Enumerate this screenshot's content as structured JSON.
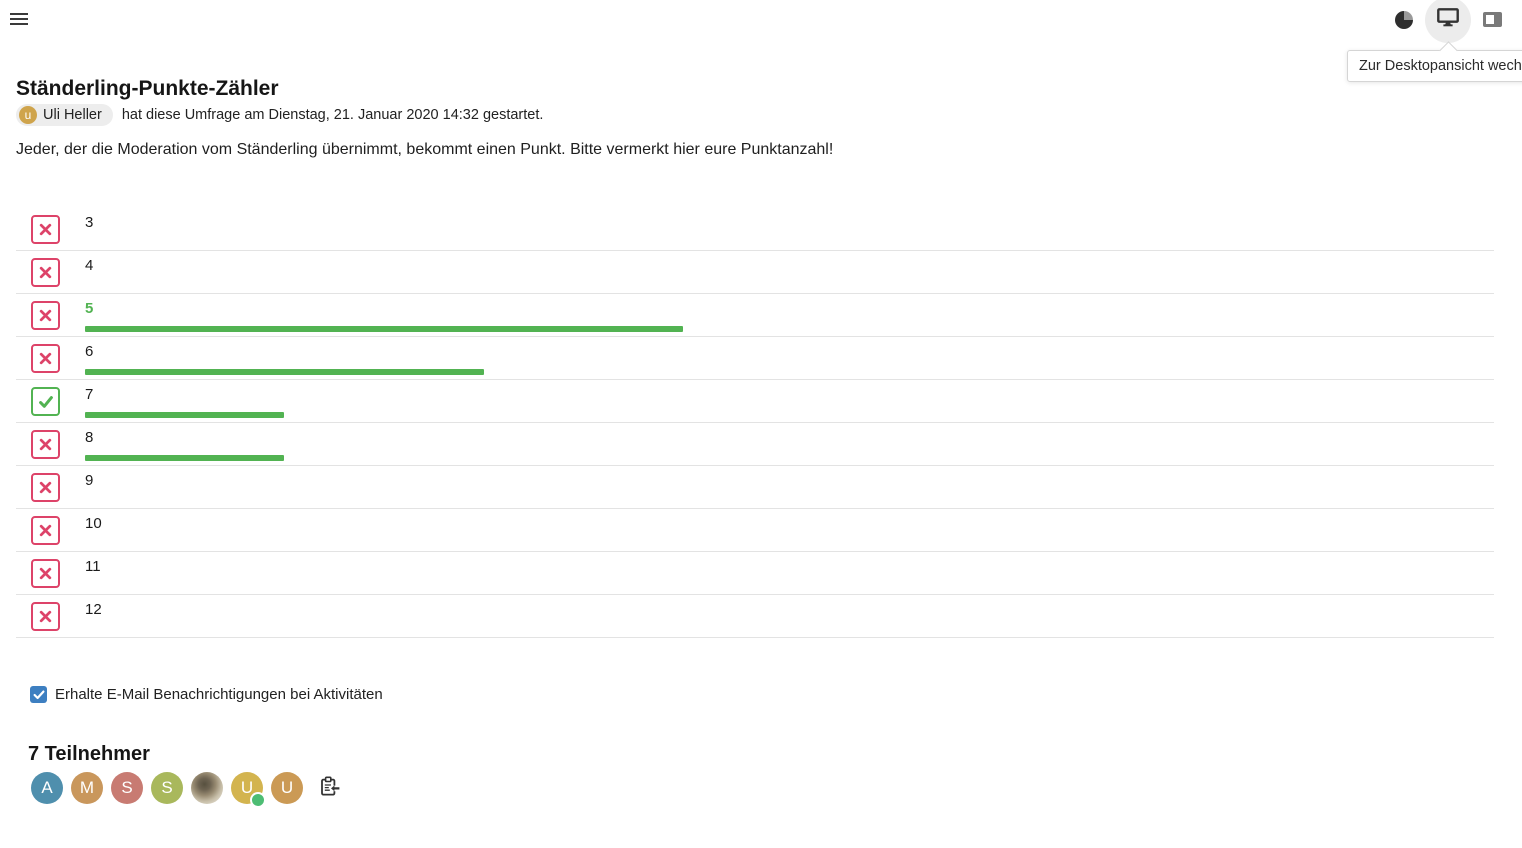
{
  "header": {
    "tooltip": "Zur Desktopansicht wechseln",
    "icons": [
      "menu-icon",
      "contrast-icon",
      "desktop-icon",
      "sidebar-toggle-icon"
    ]
  },
  "poll": {
    "title": "Ständerling-Punkte-Zähler",
    "owner": {
      "name": "Uli Heller",
      "avatar_letter": "u"
    },
    "meta_text": "hat diese Umfrage am Dienstag, 21. Januar 2020 14:32 gestartet.",
    "description": "Jeder, der die Moderation vom Ständerling übernimmt, bekommt einen Punkt. Bitte vermerkt hier eure Punktanzahl!",
    "max_votes": 3,
    "options": [
      {
        "label": "3",
        "vote": "no",
        "votes": 0,
        "highlight": false
      },
      {
        "label": "4",
        "vote": "no",
        "votes": 0,
        "highlight": false
      },
      {
        "label": "5",
        "vote": "no",
        "votes": 3,
        "highlight": true
      },
      {
        "label": "6",
        "vote": "no",
        "votes": 2,
        "highlight": false
      },
      {
        "label": "7",
        "vote": "yes",
        "votes": 1,
        "highlight": false
      },
      {
        "label": "8",
        "vote": "no",
        "votes": 1,
        "highlight": false
      },
      {
        "label": "9",
        "vote": "no",
        "votes": 0,
        "highlight": false
      },
      {
        "label": "10",
        "vote": "no",
        "votes": 0,
        "highlight": false
      },
      {
        "label": "11",
        "vote": "no",
        "votes": 0,
        "highlight": false
      },
      {
        "label": "12",
        "vote": "no",
        "votes": 0,
        "highlight": false
      }
    ]
  },
  "subscription": {
    "label": "Erhalte E-Mail Benachrichtigungen bei Aktivitäten",
    "checked": true
  },
  "participants": {
    "heading": "7 Teilnehmer",
    "avatars": [
      {
        "initial": "A",
        "color": "#4f8fad"
      },
      {
        "initial": "M",
        "color": "#c9975c"
      },
      {
        "initial": "S",
        "color": "#c87b72"
      },
      {
        "initial": "S",
        "color": "#a9b85c"
      },
      {
        "type": "photo"
      },
      {
        "initial": "U",
        "color": "#d3b44f",
        "online": true
      },
      {
        "initial": "U",
        "color": "#cb9a55"
      }
    ]
  },
  "colors": {
    "red": "#dd4369",
    "green": "#52b352",
    "blue": "#3d7fc1",
    "status-green": "#4dbd74",
    "owner-avatar": "#cfa44c"
  }
}
